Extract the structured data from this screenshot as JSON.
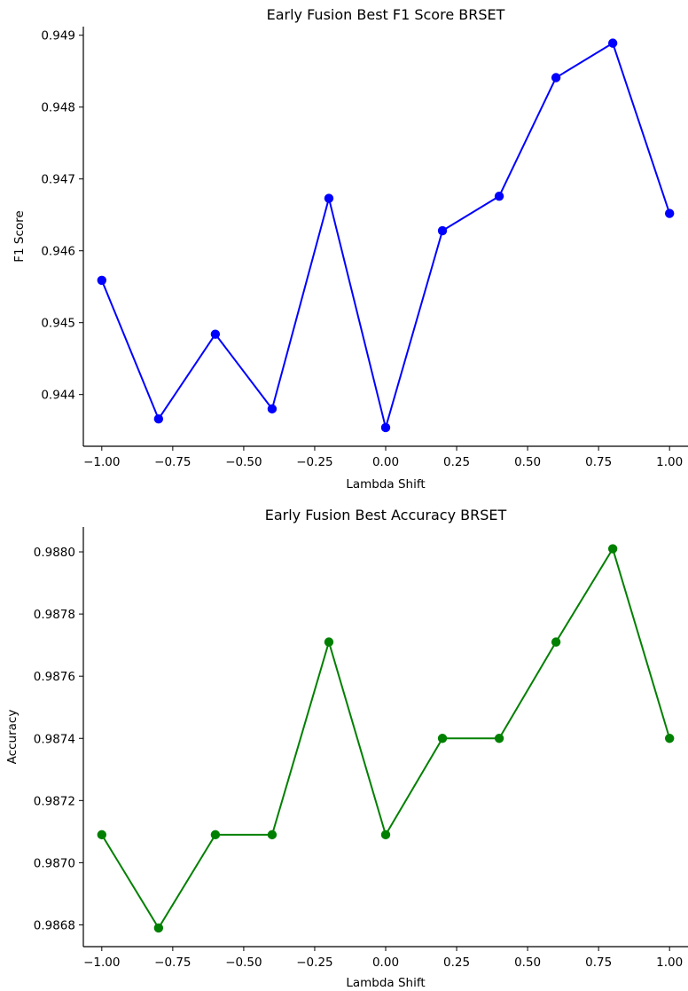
{
  "chart_data": [
    {
      "type": "line",
      "title": "Early Fusion Best F1 Score BRSET",
      "xlabel": "Lambda Shift",
      "ylabel": "F1 Score",
      "grid": false,
      "color": "#0000ff",
      "marker": "circle",
      "xlim": [
        -1.065,
        1.065
      ],
      "ylim": [
        0.94328,
        0.94912
      ],
      "xticks": [
        -1.0,
        -0.75,
        -0.5,
        -0.25,
        0.0,
        0.25,
        0.5,
        0.75,
        1.0
      ],
      "xtick_labels": [
        "−1.00",
        "−0.75",
        "−0.50",
        "−0.25",
        "0.00",
        "0.25",
        "0.50",
        "0.75",
        "1.00"
      ],
      "yticks": [
        0.944,
        0.945,
        0.946,
        0.947,
        0.948,
        0.949
      ],
      "ytick_labels": [
        "0.944",
        "0.945",
        "0.946",
        "0.947",
        "0.948",
        "0.949"
      ],
      "x": [
        -1.0,
        -0.8,
        -0.6,
        -0.4,
        -0.2,
        0.0,
        0.2,
        0.4,
        0.6,
        0.8,
        1.0
      ],
      "y": [
        0.94559,
        0.94366,
        0.94484,
        0.9438,
        0.94673,
        0.94354,
        0.94628,
        0.94676,
        0.94841,
        0.94889,
        0.94652
      ]
    },
    {
      "type": "line",
      "title": "Early Fusion Best Accuracy BRSET",
      "xlabel": "Lambda Shift",
      "ylabel": "Accuracy",
      "grid": false,
      "color": "#008000",
      "marker": "circle",
      "xlim": [
        -1.065,
        1.065
      ],
      "ylim": [
        0.98673,
        0.98808
      ],
      "xticks": [
        -1.0,
        -0.75,
        -0.5,
        -0.25,
        0.0,
        0.25,
        0.5,
        0.75,
        1.0
      ],
      "xtick_labels": [
        "−1.00",
        "−0.75",
        "−0.50",
        "−0.25",
        "0.00",
        "0.25",
        "0.50",
        "0.75",
        "1.00"
      ],
      "yticks": [
        0.9868,
        0.987,
        0.9872,
        0.9874,
        0.9876,
        0.9878,
        0.988
      ],
      "ytick_labels": [
        "0.9868",
        "0.9870",
        "0.9872",
        "0.9874",
        "0.9876",
        "0.9878",
        "0.9880"
      ],
      "x": [
        -1.0,
        -0.8,
        -0.6,
        -0.4,
        -0.2,
        0.0,
        0.2,
        0.4,
        0.6,
        0.8,
        1.0
      ],
      "y": [
        0.98709,
        0.98679,
        0.98709,
        0.98709,
        0.98771,
        0.98709,
        0.9874,
        0.9874,
        0.98771,
        0.98801,
        0.9874
      ]
    }
  ]
}
